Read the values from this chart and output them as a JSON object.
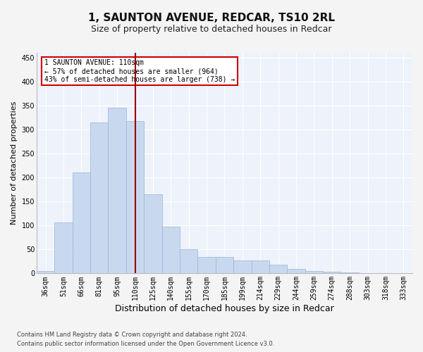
{
  "title1": "1, SAUNTON AVENUE, REDCAR, TS10 2RL",
  "title2": "Size of property relative to detached houses in Redcar",
  "xlabel": "Distribution of detached houses by size in Redcar",
  "ylabel": "Number of detached properties",
  "categories": [
    "36sqm",
    "51sqm",
    "66sqm",
    "81sqm",
    "95sqm",
    "110sqm",
    "125sqm",
    "140sqm",
    "155sqm",
    "170sqm",
    "185sqm",
    "199sqm",
    "214sqm",
    "229sqm",
    "244sqm",
    "259sqm",
    "274sqm",
    "288sqm",
    "303sqm",
    "318sqm",
    "333sqm"
  ],
  "values": [
    5,
    106,
    210,
    315,
    345,
    318,
    165,
    97,
    51,
    35,
    35,
    27,
    27,
    18,
    10,
    5,
    4,
    2,
    1,
    1,
    0
  ],
  "bar_color": "#c8d9ef",
  "bar_edge_color": "#9ab4d8",
  "vline_x": 5,
  "vline_color": "#990000",
  "annotation_text": "1 SAUNTON AVENUE: 110sqm\n← 57% of detached houses are smaller (964)\n43% of semi-detached houses are larger (738) →",
  "annotation_box_color": "#ffffff",
  "annotation_box_edge_color": "#cc0000",
  "ylim": [
    0,
    460
  ],
  "yticks": [
    0,
    50,
    100,
    150,
    200,
    250,
    300,
    350,
    400,
    450
  ],
  "footer1": "Contains HM Land Registry data © Crown copyright and database right 2024.",
  "footer2": "Contains public sector information licensed under the Open Government Licence v3.0.",
  "bg_color": "#eef2fa",
  "grid_color": "#ffffff",
  "title1_fontsize": 11,
  "title2_fontsize": 9,
  "xlabel_fontsize": 9,
  "ylabel_fontsize": 8,
  "tick_fontsize": 7,
  "footer_fontsize": 6,
  "ann_fontsize": 7
}
